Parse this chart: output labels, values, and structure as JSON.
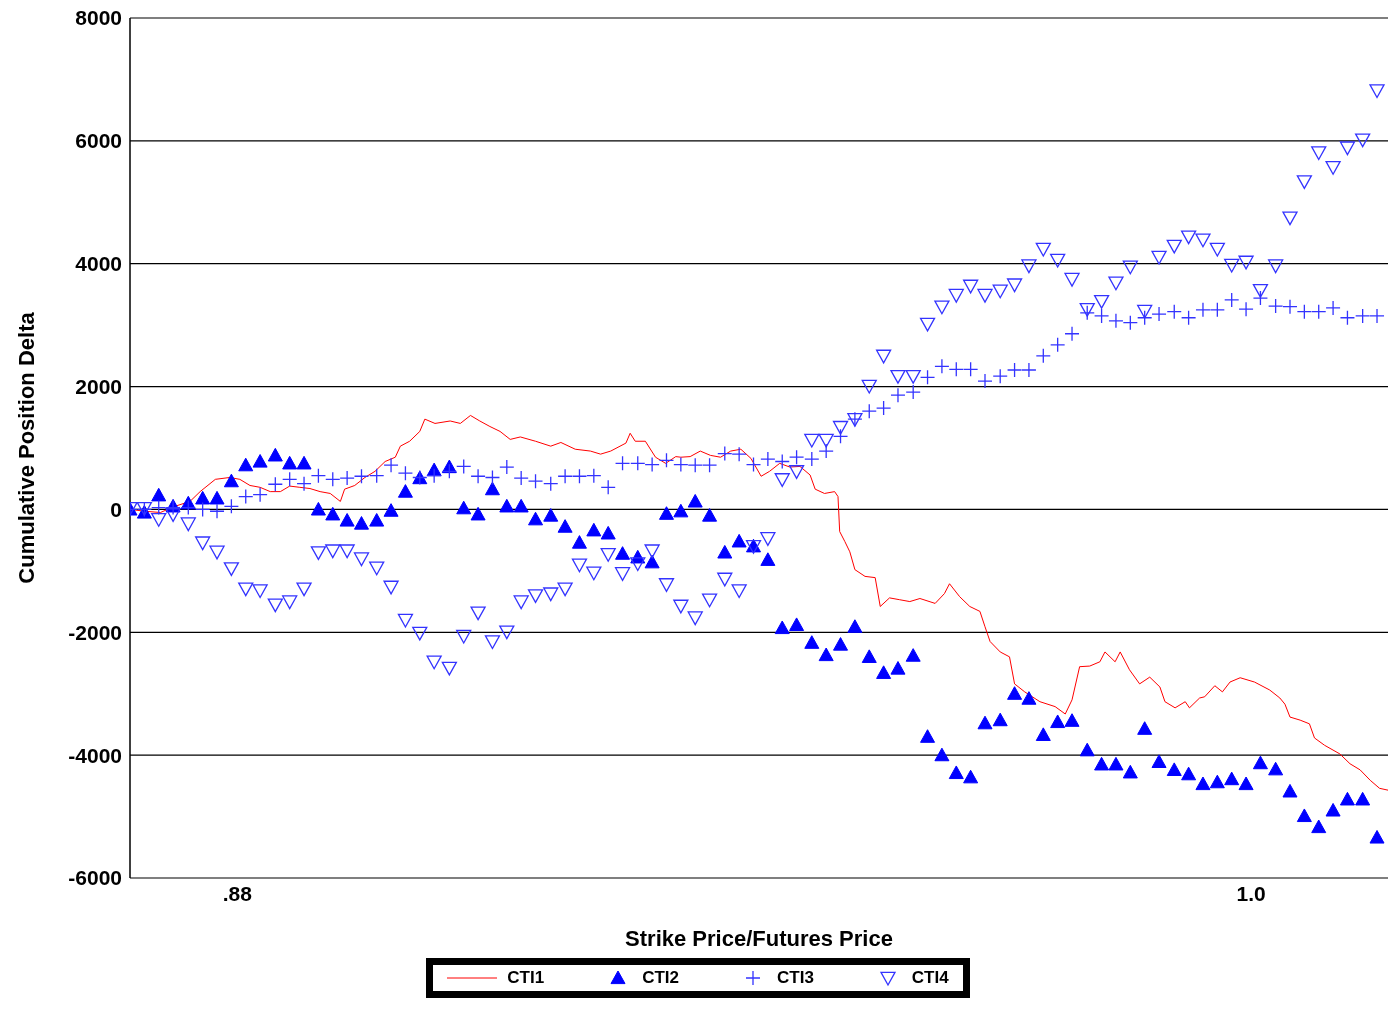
{
  "chart_data": {
    "type": "scatter",
    "xlabel": "Strike Price/Futures Price",
    "ylabel": "Cumulative Position Delta",
    "xlim": [
      0.8673,
      1.0162
    ],
    "xticks": [
      {
        "value": 0.88,
        "label": ".88"
      },
      {
        "value": 1.0,
        "label": "1.0"
      }
    ],
    "ylim": [
      -6000,
      8000
    ],
    "yticks": [
      -6000,
      -4000,
      -2000,
      0,
      2000,
      4000,
      6000,
      8000
    ],
    "grid": "y",
    "legend": "bottom",
    "x": [
      0.8673,
      0.869,
      0.8707,
      0.8724,
      0.8742,
      0.8759,
      0.8776,
      0.8793,
      0.881,
      0.8827,
      0.8845,
      0.8862,
      0.8879,
      0.8896,
      0.8913,
      0.893,
      0.8947,
      0.8965,
      0.8982,
      0.8999,
      0.9016,
      0.9033,
      0.9051,
      0.9068,
      0.9085,
      0.9102,
      0.9119,
      0.9136,
      0.9153,
      0.9171,
      0.9188,
      0.9205,
      0.9222,
      0.9239,
      0.9256,
      0.9274,
      0.9291,
      0.9308,
      0.9325,
      0.9342,
      0.9359,
      0.9377,
      0.9394,
      0.9411,
      0.9428,
      0.9445,
      0.9462,
      0.948,
      0.9497,
      0.9514,
      0.9531,
      0.9548,
      0.9565,
      0.9582,
      0.96,
      0.9617,
      0.9634,
      0.9651,
      0.9668,
      0.9685,
      0.9703,
      0.972,
      0.9737,
      0.9754,
      0.9771,
      0.9788,
      0.9806,
      0.9823,
      0.984,
      0.9857,
      0.9874,
      0.9891,
      0.9909,
      0.9926,
      0.9943,
      0.996,
      0.9977,
      0.9994,
      1.0011,
      1.0029,
      1.0046,
      1.0063,
      1.008,
      1.0097,
      1.0114,
      1.0132,
      1.0149
    ],
    "series": [
      {
        "name": "CTI1",
        "type": "line",
        "color": "#ff0000",
        "marker": "none",
        "line_style": "solid",
        "x": [
          0.8673,
          0.8691,
          0.8709,
          0.8726,
          0.8744,
          0.8756,
          0.8774,
          0.8791,
          0.8803,
          0.8815,
          0.8827,
          0.8839,
          0.8851,
          0.8862,
          0.8874,
          0.8886,
          0.8898,
          0.891,
          0.8922,
          0.8927,
          0.8939,
          0.8951,
          0.8963,
          0.8975,
          0.8987,
          0.8993,
          0.9004,
          0.9016,
          0.9022,
          0.9034,
          0.9052,
          0.9064,
          0.9076,
          0.9087,
          0.9099,
          0.9111,
          0.9123,
          0.9135,
          0.9153,
          0.9171,
          0.9183,
          0.92,
          0.9218,
          0.923,
          0.9242,
          0.926,
          0.9265,
          0.9271,
          0.9283,
          0.9295,
          0.9307,
          0.9319,
          0.9325,
          0.9336,
          0.9348,
          0.936,
          0.9372,
          0.9384,
          0.9396,
          0.9408,
          0.942,
          0.943,
          0.9442,
          0.9454,
          0.9466,
          0.9478,
          0.9484,
          0.9495,
          0.9507,
          0.9511,
          0.9513,
          0.9519,
          0.9525,
          0.9531,
          0.9543,
          0.9555,
          0.9561,
          0.9572,
          0.9584,
          0.9596,
          0.9608,
          0.9626,
          0.9637,
          0.9643,
          0.9655,
          0.9667,
          0.9679,
          0.9685,
          0.9691,
          0.9703,
          0.9714,
          0.972,
          0.9732,
          0.975,
          0.9768,
          0.978,
          0.9788,
          0.9797,
          0.9809,
          0.9821,
          0.9827,
          0.9839,
          0.9845,
          0.9856,
          0.9868,
          0.988,
          0.9892,
          0.9898,
          0.991,
          0.9922,
          0.9927,
          0.9939,
          0.9945,
          0.9957,
          0.9966,
          0.9975,
          0.9987,
          1.0004,
          1.0022,
          1.0034,
          1.004,
          1.0046,
          1.0058,
          1.0069,
          1.0075,
          1.0087,
          1.0105,
          1.0117,
          1.0129,
          1.0141,
          1.0152,
          1.0162
        ],
        "values": [
          0,
          -30,
          -50,
          50,
          130,
          290,
          490,
          520,
          490,
          390,
          360,
          290,
          290,
          380,
          360,
          340,
          290,
          260,
          130,
          330,
          390,
          520,
          620,
          780,
          850,
          1030,
          1110,
          1270,
          1470,
          1400,
          1440,
          1400,
          1530,
          1440,
          1350,
          1270,
          1140,
          1180,
          1110,
          1030,
          1090,
          980,
          950,
          900,
          950,
          1080,
          1240,
          1110,
          1110,
          850,
          750,
          860,
          850,
          860,
          950,
          880,
          850,
          950,
          980,
          830,
          540,
          620,
          750,
          690,
          700,
          560,
          330,
          260,
          290,
          210,
          -360,
          -520,
          -690,
          -980,
          -1090,
          -1110,
          -1580,
          -1440,
          -1470,
          -1500,
          -1450,
          -1530,
          -1370,
          -1210,
          -1420,
          -1580,
          -1660,
          -1910,
          -2150,
          -2320,
          -2400,
          -2840,
          -2970,
          -3130,
          -3210,
          -3330,
          -3100,
          -2560,
          -2550,
          -2480,
          -2320,
          -2480,
          -2320,
          -2610,
          -2840,
          -2730,
          -2890,
          -3130,
          -3230,
          -3130,
          -3230,
          -3070,
          -3050,
          -2870,
          -2970,
          -2810,
          -2740,
          -2810,
          -2940,
          -3070,
          -3170,
          -3380,
          -3430,
          -3490,
          -3720,
          -3840,
          -3980,
          -4140,
          -4240,
          -4410,
          -4540,
          -4570
        ]
      },
      {
        "name": "CTI2",
        "color": "#0000ff",
        "marker": "triangle",
        "values": [
          0,
          -50,
          230,
          50,
          100,
          180,
          180,
          460,
          720,
          780,
          880,
          750,
          750,
          0,
          -80,
          -180,
          -230,
          -180,
          -20,
          290,
          510,
          640,
          690,
          20,
          -80,
          330,
          50,
          50,
          -160,
          -100,
          -280,
          -540,
          -340,
          -390,
          -720,
          -780,
          -860,
          -70,
          -30,
          130,
          -100,
          -700,
          -520,
          -600,
          -820,
          -1930,
          -1880,
          -2170,
          -2370,
          -2200,
          -1910,
          -2400,
          -2660,
          -2590,
          -2380,
          -3700,
          -4000,
          -4290,
          -4360,
          -3480,
          -3430,
          -3000,
          -3080,
          -3670,
          -3460,
          -3440,
          -3920,
          -4150,
          -4150,
          -4280,
          -3570,
          -4110,
          -4240,
          -4310,
          -4470,
          -4440,
          -4390,
          -4470,
          -4130,
          -4230,
          -4590,
          -4990,
          -5170,
          -4900,
          -4720,
          -4720,
          -5340
        ]
      },
      {
        "name": "CTI3",
        "color": "#3333ff",
        "marker": "cross",
        "values": [
          0,
          0,
          30,
          30,
          30,
          0,
          -30,
          50,
          210,
          240,
          410,
          490,
          420,
          550,
          490,
          510,
          540,
          550,
          720,
          590,
          520,
          550,
          620,
          700,
          540,
          520,
          690,
          510,
          460,
          420,
          540,
          540,
          550,
          360,
          750,
          750,
          730,
          800,
          730,
          720,
          720,
          910,
          900,
          730,
          820,
          780,
          850,
          820,
          950,
          1190,
          1470,
          1600,
          1650,
          1860,
          1910,
          2150,
          2330,
          2280,
          2280,
          2090,
          2170,
          2270,
          2270,
          2500,
          2680,
          2860,
          3200,
          3150,
          3070,
          3040,
          3120,
          3180,
          3220,
          3120,
          3250,
          3250,
          3410,
          3260,
          3440,
          3310,
          3300,
          3220,
          3220,
          3280,
          3120,
          3150,
          3150
        ]
      },
      {
        "name": "CTI4",
        "color": "#3333ff",
        "marker": "triangle-down",
        "values": [
          20,
          20,
          -160,
          -80,
          -230,
          -540,
          -690,
          -960,
          -1290,
          -1320,
          -1550,
          -1500,
          -1290,
          -700,
          -670,
          -670,
          -800,
          -950,
          -1260,
          -1800,
          -2010,
          -2480,
          -2580,
          -2060,
          -1680,
          -2150,
          -1990,
          -1500,
          -1400,
          -1370,
          -1290,
          -900,
          -1030,
          -730,
          -1040,
          -880,
          -670,
          -1220,
          -1570,
          -1760,
          -1470,
          -1130,
          -1320,
          -600,
          -470,
          490,
          620,
          1130,
          1130,
          1340,
          1470,
          2010,
          2500,
          2170,
          2170,
          3020,
          3300,
          3490,
          3640,
          3490,
          3560,
          3660,
          3970,
          4240,
          4060,
          3750,
          3260,
          3390,
          3690,
          3950,
          3230,
          4110,
          4290,
          4440,
          4390,
          4240,
          3980,
          4030,
          3570,
          3970,
          4750,
          5340,
          5810,
          5570,
          5890,
          6020,
          6820
        ]
      }
    ]
  }
}
